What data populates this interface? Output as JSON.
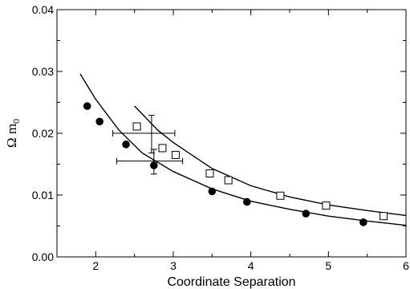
{
  "chart_data": {
    "type": "scatter",
    "xlabel": "Coordinate Separation",
    "ylabel_main": "Ω m",
    "ylabel_sub": "0",
    "xlim": [
      1.5,
      6
    ],
    "ylim": [
      0,
      0.04
    ],
    "x_ticks": [
      2,
      3,
      4,
      5,
      6
    ],
    "y_ticks": [
      0.0,
      0.01,
      0.02,
      0.03,
      0.04
    ],
    "y_tick_labels": [
      "0.00",
      "0.01",
      "0.02",
      "0.03",
      "0.04"
    ],
    "series": [
      {
        "marker": "filled-circle",
        "points": [
          {
            "x": 1.89,
            "y": 0.0244
          },
          {
            "x": 2.05,
            "y": 0.0219
          },
          {
            "x": 2.39,
            "y": 0.0182
          },
          {
            "x": 2.75,
            "y": 0.0148
          },
          {
            "x": 3.5,
            "y": 0.0106
          },
          {
            "x": 3.95,
            "y": 0.0089
          },
          {
            "x": 4.71,
            "y": 0.007
          },
          {
            "x": 5.45,
            "y": 0.0056
          }
        ]
      },
      {
        "marker": "open-square",
        "points": [
          {
            "x": 2.53,
            "y": 0.0211
          },
          {
            "x": 2.86,
            "y": 0.0176
          },
          {
            "x": 3.03,
            "y": 0.0165
          },
          {
            "x": 3.47,
            "y": 0.0135
          },
          {
            "x": 3.71,
            "y": 0.0124
          },
          {
            "x": 4.38,
            "y": 0.0099
          },
          {
            "x": 4.97,
            "y": 0.0083
          },
          {
            "x": 5.71,
            "y": 0.0066
          }
        ]
      },
      {
        "marker": "line",
        "points": [
          {
            "x": 1.8,
            "y": 0.0296
          },
          {
            "x": 2.0,
            "y": 0.0255
          },
          {
            "x": 2.3,
            "y": 0.0205
          },
          {
            "x": 2.6,
            "y": 0.0168
          },
          {
            "x": 3.0,
            "y": 0.0138
          },
          {
            "x": 3.5,
            "y": 0.011
          },
          {
            "x": 4.0,
            "y": 0.009
          },
          {
            "x": 4.5,
            "y": 0.0077
          },
          {
            "x": 5.0,
            "y": 0.0066
          },
          {
            "x": 5.5,
            "y": 0.0058
          },
          {
            "x": 6.0,
            "y": 0.0051
          }
        ]
      },
      {
        "marker": "line",
        "points": [
          {
            "x": 2.5,
            "y": 0.0244
          },
          {
            "x": 2.8,
            "y": 0.0205
          },
          {
            "x": 3.0,
            "y": 0.0185
          },
          {
            "x": 3.5,
            "y": 0.0143
          },
          {
            "x": 4.0,
            "y": 0.0115
          },
          {
            "x": 4.5,
            "y": 0.0097
          },
          {
            "x": 5.0,
            "y": 0.0084
          },
          {
            "x": 5.5,
            "y": 0.0075
          },
          {
            "x": 6.0,
            "y": 0.0067
          }
        ]
      }
    ],
    "error_crosses": [
      {
        "x": 2.72,
        "y": 0.02,
        "xerr": [
          2.22,
          3.02
        ],
        "yerr": [
          0.0168,
          0.0229
        ]
      },
      {
        "x": 2.75,
        "y": 0.0155,
        "xerr": [
          2.27,
          3.12
        ],
        "yerr": [
          0.0134,
          0.0174
        ]
      }
    ]
  }
}
